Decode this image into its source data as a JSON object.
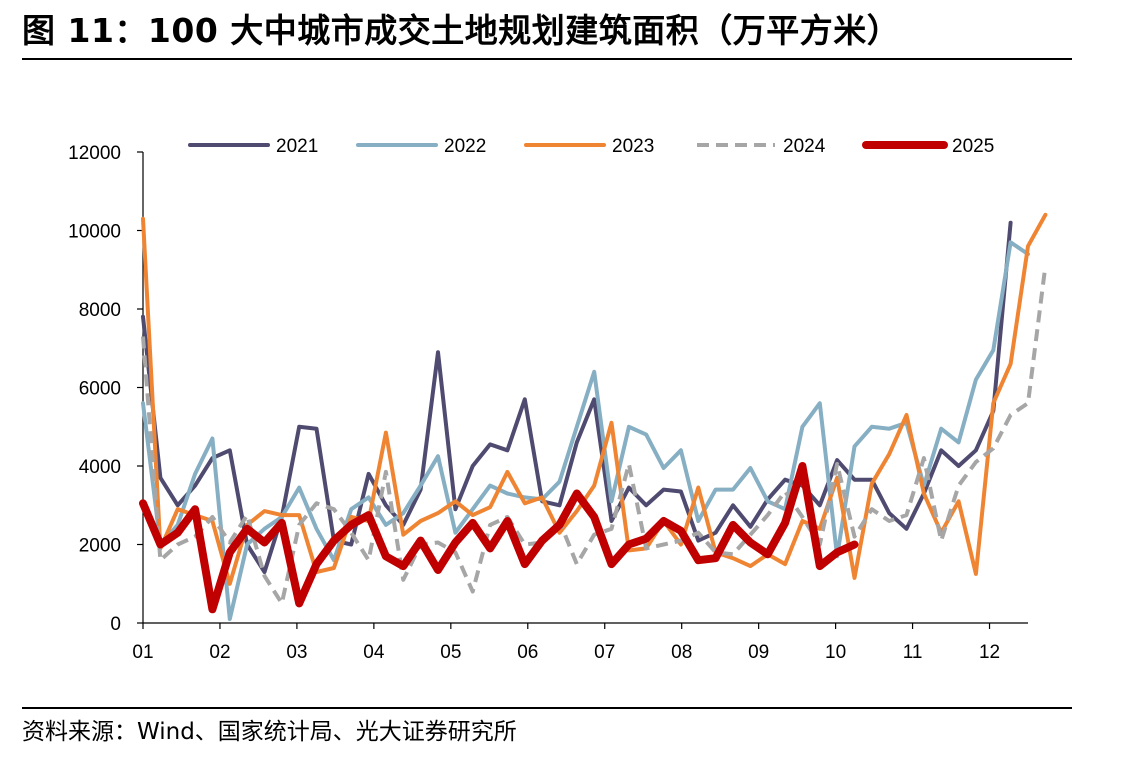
{
  "header": {
    "title": "图 11：100 大中城市成交土地规划建筑面积（万平方米）"
  },
  "footer": {
    "source": "资料来源：Wind、国家统计局、光大证券研究所"
  },
  "chart_data": {
    "type": "line",
    "ylim": [
      0,
      12000
    ],
    "yticks": [
      0,
      2000,
      4000,
      6000,
      8000,
      10000,
      12000
    ],
    "xticks": [
      "01",
      "02",
      "03",
      "04",
      "05",
      "06",
      "07",
      "08",
      "09",
      "10",
      "11",
      "12"
    ],
    "legend_position": "top",
    "grid": false,
    "series": [
      {
        "name": "2021",
        "color": "#4f4a70",
        "dash": "solid",
        "width": 4,
        "values": [
          7800,
          3700,
          3000,
          3500,
          4200,
          4400,
          2000,
          1300,
          2700,
          5000,
          4950,
          2100,
          2000,
          3800,
          3000,
          2500,
          3400,
          6900,
          2900,
          4000,
          4550,
          4400,
          5700,
          3100,
          3000,
          4600,
          5700,
          2600,
          3450,
          3000,
          3400,
          3350,
          2100,
          2300,
          3000,
          2450,
          3150,
          3650,
          3500,
          3000,
          4150,
          3650,
          3650,
          2800,
          2400,
          3300,
          4400,
          4000,
          4400,
          5400,
          10200
        ]
      },
      {
        "name": "2022",
        "color": "#87afc3",
        "dash": "solid",
        "width": 4,
        "values": [
          5600,
          2000,
          2500,
          3800,
          4700,
          100,
          2000,
          2400,
          2700,
          3450,
          2400,
          1600,
          2900,
          3200,
          2500,
          2800,
          3500,
          4250,
          2300,
          2900,
          3500,
          3300,
          3200,
          3150,
          3600,
          5000,
          6400,
          3100,
          5000,
          4800,
          3950,
          4400,
          2600,
          3400,
          3400,
          3950,
          3100,
          2900,
          5000,
          5600,
          1700,
          4500,
          5000,
          4950,
          5100,
          3500,
          4950,
          4600,
          6200,
          6950,
          9700,
          9400
        ]
      },
      {
        "name": "2023",
        "color": "#ef8533",
        "dash": "solid",
        "width": 4,
        "values": [
          10300,
          1900,
          2900,
          2750,
          2600,
          1000,
          2500,
          2850,
          2750,
          2750,
          1300,
          1400,
          2700,
          2600,
          4850,
          2250,
          2600,
          2800,
          3100,
          2750,
          2950,
          3850,
          3050,
          3200,
          2300,
          2850,
          3500,
          5100,
          1850,
          1900,
          2600,
          2000,
          3450,
          1800,
          1650,
          1450,
          1750,
          1500,
          2600,
          2400,
          3700,
          1150,
          3550,
          4300,
          5300,
          3300,
          2300,
          3100,
          1250,
          5600,
          6600,
          9600,
          10400
        ]
      },
      {
        "name": "2024",
        "color": "#a6a6a6",
        "dash": "dashed",
        "width": 4,
        "values": [
          7300,
          1600,
          2000,
          2200,
          2700,
          2050,
          2750,
          1200,
          500,
          2500,
          3050,
          2900,
          2300,
          1600,
          3850,
          1100,
          2000,
          2050,
          1800,
          800,
          2500,
          2700,
          2000,
          2050,
          2600,
          1500,
          2250,
          2400,
          4050,
          1900,
          2000,
          2100,
          2300,
          1800,
          1750,
          2250,
          2750,
          3350,
          2700,
          2000,
          4050,
          2200,
          2900,
          2600,
          2750,
          4200,
          2100,
          3500,
          4100,
          4450,
          5300,
          5600,
          9100
        ]
      },
      {
        "name": "2025",
        "color": "#c00000",
        "dash": "solid",
        "width": 8,
        "values": [
          3050,
          2000,
          2300,
          2900,
          350,
          1800,
          2400,
          2050,
          2550,
          500,
          1500,
          2100,
          2500,
          2750,
          1700,
          1450,
          2100,
          1350,
          2050,
          2550,
          1900,
          2600,
          1500,
          2100,
          2500,
          3300,
          2700,
          1500,
          2000,
          2150,
          2600,
          2350,
          1600,
          1650,
          2500,
          2050,
          1750,
          2550,
          4000,
          1450,
          1800,
          2000
        ]
      }
    ]
  }
}
